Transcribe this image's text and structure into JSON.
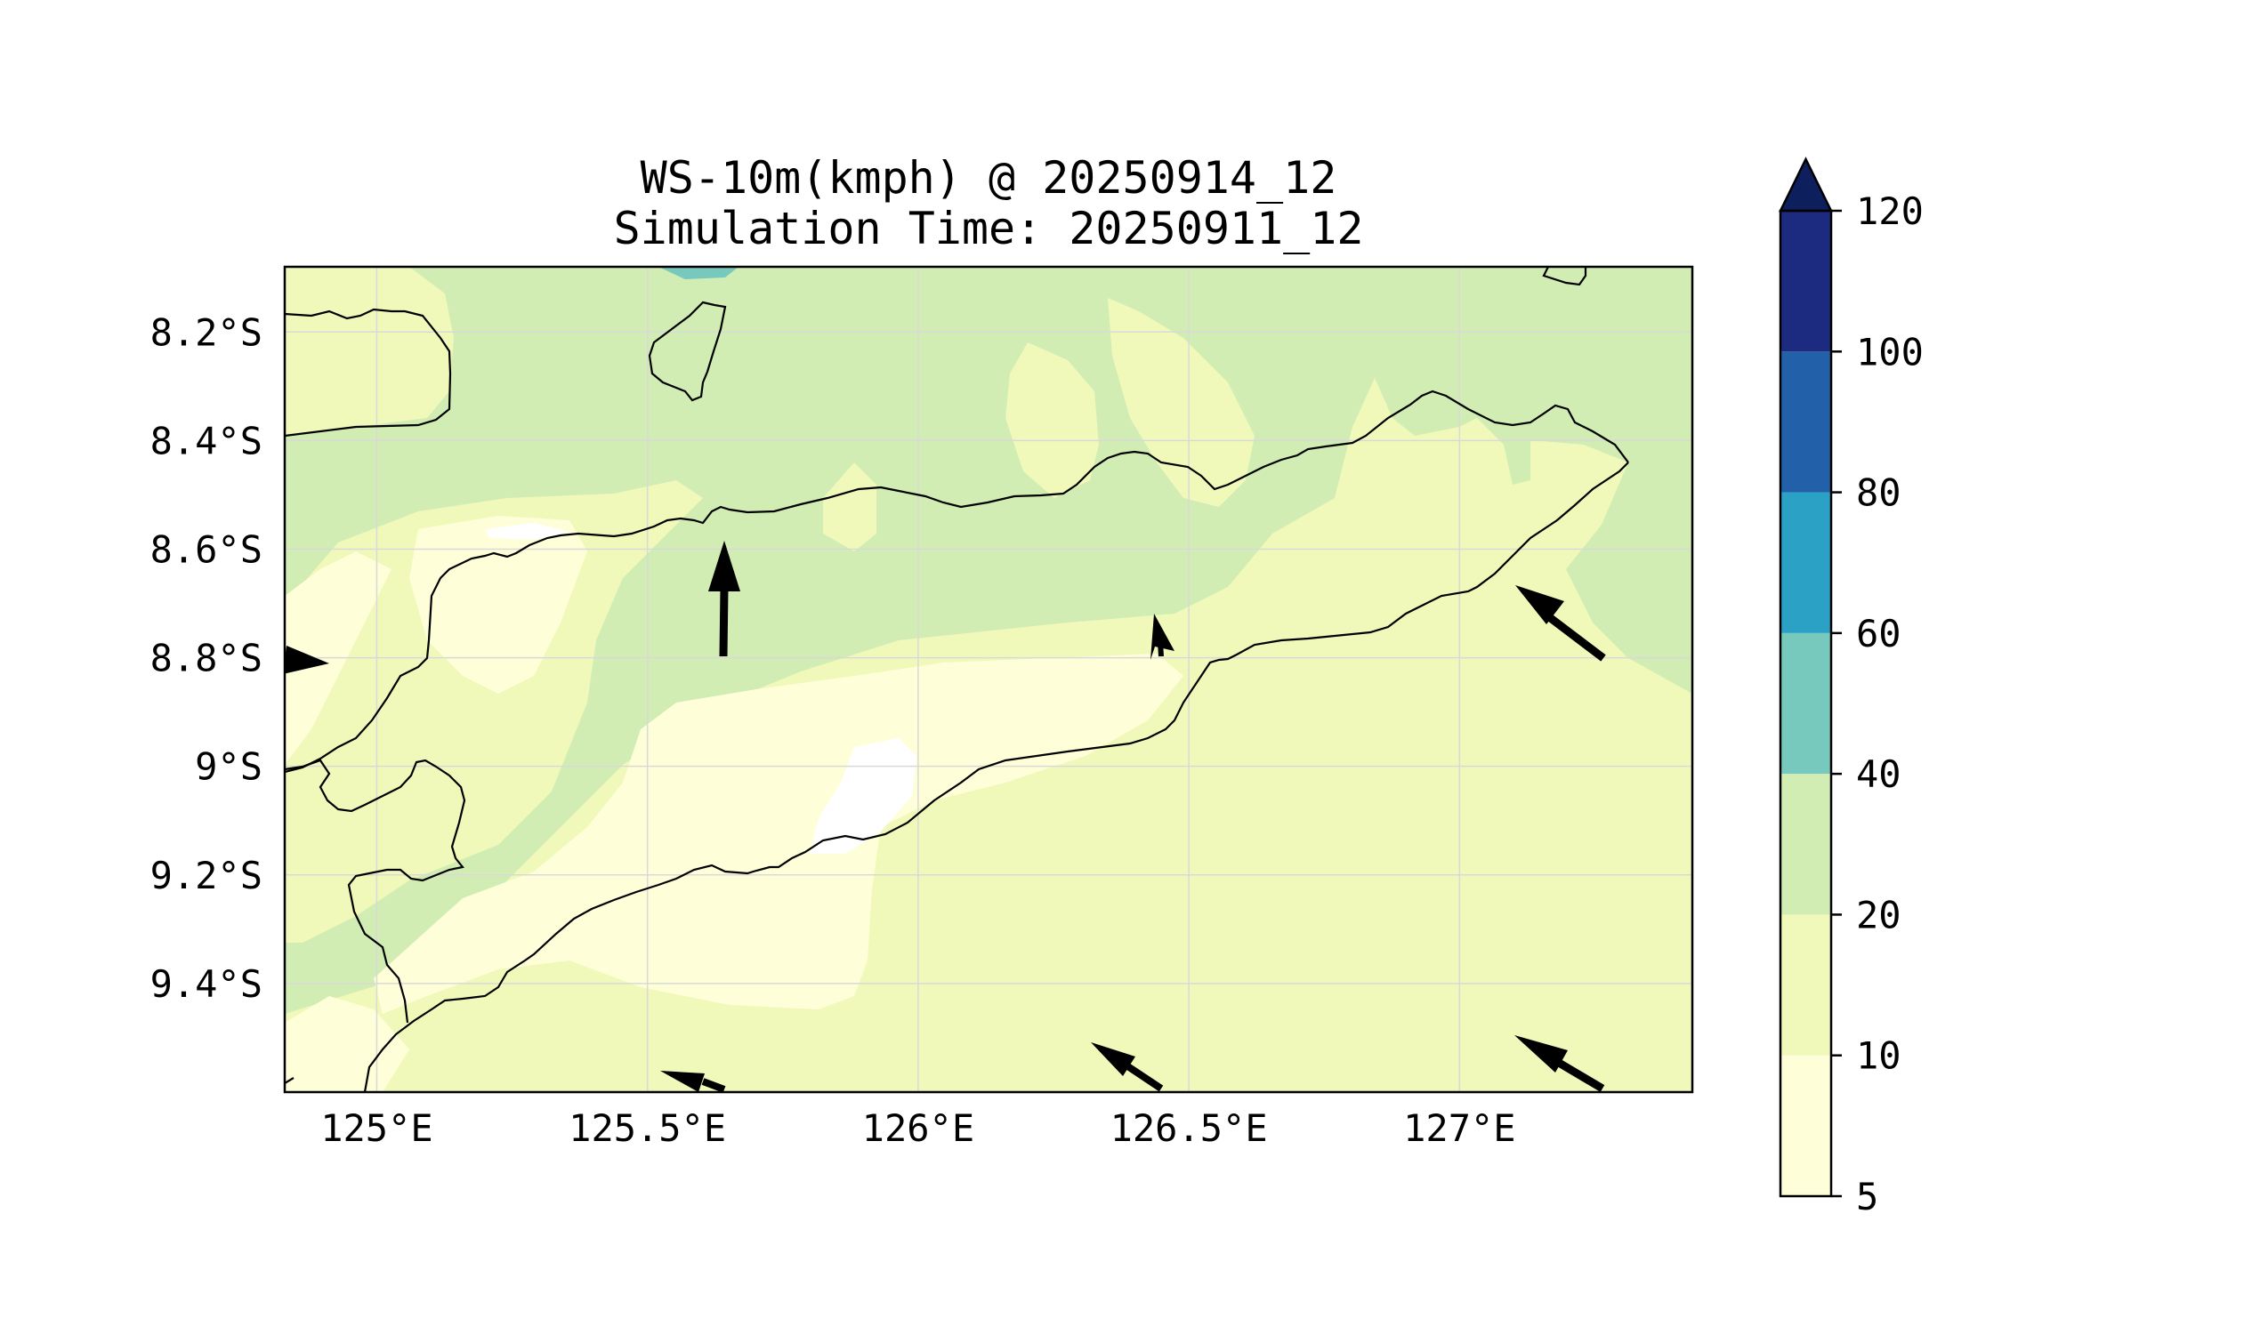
{
  "title": {
    "line1": "WS-10m(kmph) @ 20250914_12",
    "line2": "Simulation Time: 20250911_12"
  },
  "map": {
    "lon_range": [
      124.83,
      127.43
    ],
    "lat_range": [
      -9.6,
      -8.08
    ],
    "lon_ticks": [
      {
        "value": 125.0,
        "label": "125°E"
      },
      {
        "value": 125.5,
        "label": "125.5°E"
      },
      {
        "value": 126.0,
        "label": "126°E"
      },
      {
        "value": 126.5,
        "label": "126.5°E"
      },
      {
        "value": 127.0,
        "label": "127°E"
      }
    ],
    "lat_ticks": [
      {
        "value": -8.2,
        "label": "8.2°S"
      },
      {
        "value": -8.4,
        "label": "8.4°S"
      },
      {
        "value": -8.6,
        "label": "8.6°S"
      },
      {
        "value": -8.8,
        "label": "8.8°S"
      },
      {
        "value": -9.0,
        "label": "9°S"
      },
      {
        "value": -9.2,
        "label": "9.2°S"
      },
      {
        "value": -9.4,
        "label": "9.4°S"
      }
    ],
    "grid": true
  },
  "colorbar": {
    "extend": "max",
    "levels": [
      {
        "label": "5"
      },
      {
        "label": "10"
      },
      {
        "label": "20"
      },
      {
        "label": "40"
      },
      {
        "label": "60"
      },
      {
        "label": "80"
      },
      {
        "label": "100"
      },
      {
        "label": "120"
      }
    ],
    "colors": [
      "#feffd9",
      "#f0f9ba",
      "#d1edb3",
      "#77c9be",
      "#2ba1c5",
      "#2260a9",
      "#1c2b7f"
    ],
    "extend_color": "#0d1f5c"
  },
  "chart_data": {
    "type": "heatmap",
    "title": "WS-10m(kmph) @ 20250914_12",
    "subtitle": "Simulation Time: 20250911_12",
    "variable": "WS-10m",
    "units": "kmph",
    "xlabel": "",
    "ylabel": "",
    "xlim": [
      124.83,
      127.43
    ],
    "ylim": [
      -9.6,
      -8.08
    ],
    "levels": [
      5,
      10,
      20,
      40,
      60,
      80,
      100,
      120
    ],
    "wind_vectors": [
      {
        "lon": 124.83,
        "lat": -8.8,
        "direction": "east"
      },
      {
        "lon": 125.63,
        "lat": -8.8,
        "direction": "north"
      },
      {
        "lon": 126.44,
        "lat": -8.8,
        "direction": "north"
      },
      {
        "lon": 127.27,
        "lat": -8.8,
        "direction": "northwest"
      },
      {
        "lon": 125.63,
        "lat": -9.6,
        "direction": "west"
      },
      {
        "lon": 126.44,
        "lat": -9.6,
        "direction": "northwest"
      },
      {
        "lon": 127.27,
        "lat": -9.6,
        "direction": "northwest"
      }
    ]
  },
  "colors": {
    "frame": "#000000",
    "coastline": "#000000",
    "grid": "#d9d9d9",
    "arrow": "#000000"
  }
}
